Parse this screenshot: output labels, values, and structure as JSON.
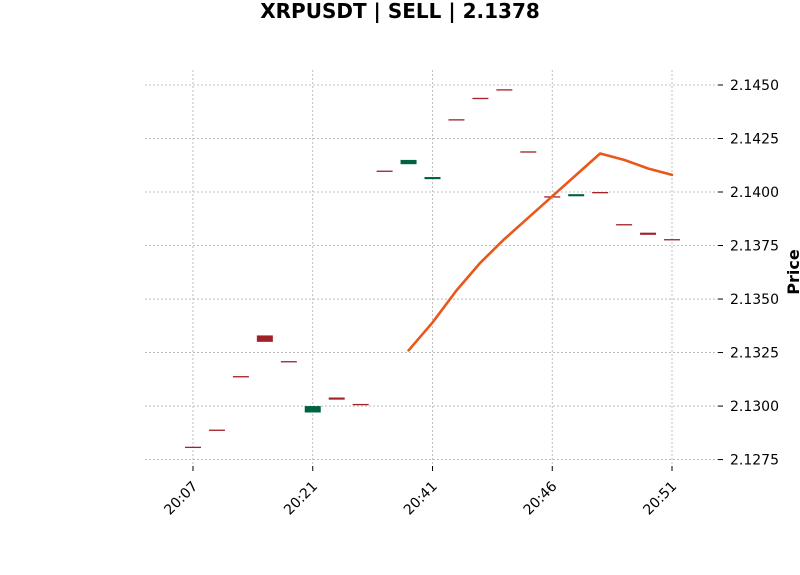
{
  "chart_data": {
    "type": "candlestick",
    "title": "XRPUSDT | SELL | 2.1378",
    "xlabel": "",
    "ylabel": "Price",
    "ylim": [
      2.1272,
      2.1457
    ],
    "y_ticks": [
      "2.1275",
      "2.1300",
      "2.1325",
      "2.1350",
      "2.1375",
      "2.1400",
      "2.1425",
      "2.1450"
    ],
    "x_ticks": [
      {
        "index": 0,
        "label": "20:07"
      },
      {
        "index": 5,
        "label": "20:21"
      },
      {
        "index": 10,
        "label": "20:41"
      },
      {
        "index": 15,
        "label": "20:46"
      },
      {
        "index": 20,
        "label": "20:51"
      }
    ],
    "grid": true,
    "up_color": "#006340",
    "down_color": "#a02128",
    "line_color": "#e8581c",
    "candles": [
      {
        "i": 0,
        "open": 2.1281,
        "close": 2.1281
      },
      {
        "i": 1,
        "open": 2.1289,
        "close": 2.1289
      },
      {
        "i": 2,
        "open": 2.1314,
        "close": 2.1314
      },
      {
        "i": 3,
        "open": 2.1333,
        "close": 2.133
      },
      {
        "i": 4,
        "open": 2.1321,
        "close": 2.1321
      },
      {
        "i": 5,
        "open": 2.1297,
        "close": 2.13
      },
      {
        "i": 6,
        "open": 2.1304,
        "close": 2.1303
      },
      {
        "i": 7,
        "open": 2.1301,
        "close": 2.1301
      },
      {
        "i": 8,
        "open": 2.141,
        "close": 2.141
      },
      {
        "i": 9,
        "open": 2.1413,
        "close": 2.1415
      },
      {
        "i": 10,
        "open": 2.1406,
        "close": 2.1407
      },
      {
        "i": 11,
        "open": 2.1434,
        "close": 2.1434
      },
      {
        "i": 12,
        "open": 2.1444,
        "close": 2.1444
      },
      {
        "i": 13,
        "open": 2.1448,
        "close": 2.1448
      },
      {
        "i": 14,
        "open": 2.1419,
        "close": 2.1419
      },
      {
        "i": 15,
        "open": 2.1398,
        "close": 2.1398
      },
      {
        "i": 16,
        "open": 2.1398,
        "close": 2.1399
      },
      {
        "i": 17,
        "open": 2.14,
        "close": 2.14
      },
      {
        "i": 18,
        "open": 2.1385,
        "close": 2.1385
      },
      {
        "i": 19,
        "open": 2.1381,
        "close": 2.138
      },
      {
        "i": 20,
        "open": 2.1378,
        "close": 2.1378
      }
    ],
    "series": [
      {
        "type": "line",
        "x": [
          9,
          10,
          11,
          12,
          13,
          14,
          15,
          16,
          17,
          18,
          19,
          20
        ],
        "values": [
          2.1326,
          2.1339,
          2.1354,
          2.1367,
          2.1378,
          2.1388,
          2.1398,
          2.1408,
          2.1418,
          2.1415,
          2.1411,
          2.1408
        ]
      }
    ]
  }
}
